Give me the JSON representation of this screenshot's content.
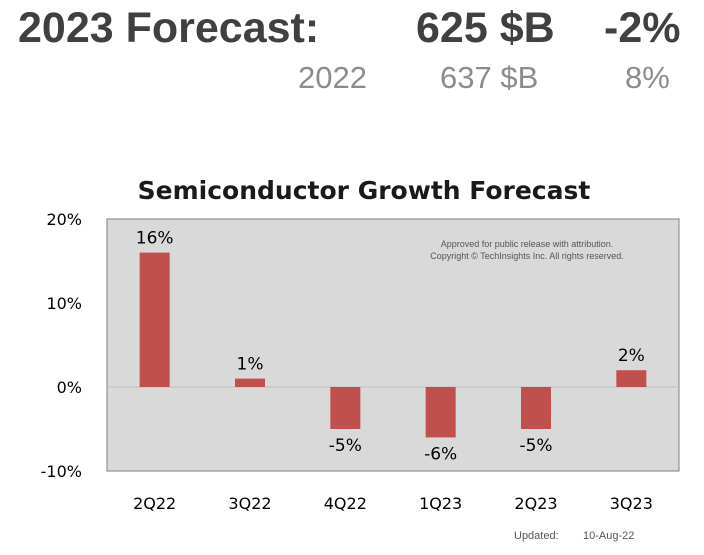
{
  "header": {
    "label": "2023 Forecast:",
    "value": "625 $B",
    "change": "-2%",
    "prev_year": "2022",
    "prev_value": "637 $B",
    "prev_change": "8%"
  },
  "chart_data": {
    "type": "bar",
    "title": "Semiconductor Growth Forecast",
    "categories": [
      "2Q22",
      "3Q22",
      "4Q22",
      "1Q23",
      "2Q23",
      "3Q23"
    ],
    "values": [
      16,
      1,
      -5,
      -6,
      -5,
      2
    ],
    "data_labels": [
      "16%",
      "1%",
      "-5%",
      "-6%",
      "-5%",
      "2%"
    ],
    "bar_color": "#c0504d",
    "plot_background": "#d9d9d9",
    "ylim": [
      -10,
      20
    ],
    "yticks": [
      20,
      10,
      0,
      -10
    ],
    "ytick_labels": [
      "20%",
      "10%",
      "0%",
      "-10%"
    ],
    "grid": false,
    "legend": "none",
    "annotation": [
      "Approved for public release with attribution.",
      "Copyright © TechInsights Inc.  All rights reserved."
    ]
  },
  "footer": {
    "updated_label": "Updated:",
    "updated_date": "10-Aug-22"
  }
}
